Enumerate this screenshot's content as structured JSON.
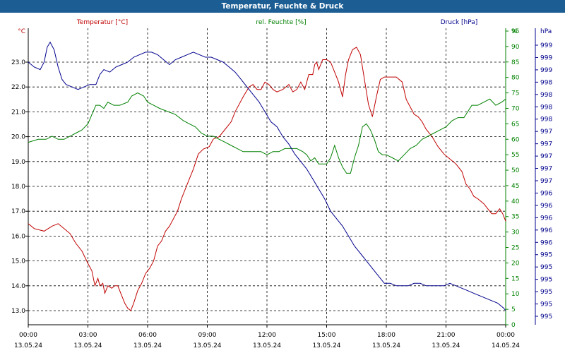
{
  "window": {
    "title": "Temperatur, Feuchte & Druck"
  },
  "colors": {
    "temperature": "#c00000",
    "humidity": "#008000",
    "pressure": "#00008c",
    "grid": "#000000",
    "titlebar": "#1c5e94"
  },
  "chart_data": {
    "type": "line",
    "title": "Temperatur, Feuchte & Druck",
    "grid": true,
    "x": {
      "range_hours": [
        0,
        24
      ],
      "tick_times": [
        "00:00",
        "03:00",
        "06:00",
        "09:00",
        "12:00",
        "15:00",
        "18:00",
        "21:00",
        "00:00"
      ],
      "tick_dates": [
        "13.05.24",
        "13.05.24",
        "13.05.24",
        "13.05.24",
        "13.05.24",
        "13.05.24",
        "13.05.24",
        "13.05.24",
        "14.05.24"
      ]
    },
    "axes": {
      "temperature": {
        "label": "Temperatur [°C]",
        "unit": "°C",
        "range": [
          12.5,
          23.9
        ],
        "ticks": [
          "13.0",
          "14.0",
          "15.0",
          "16.0",
          "17.0",
          "18.0",
          "19.0",
          "20.0",
          "21.0",
          "22.0",
          "23.0"
        ]
      },
      "humidity": {
        "label": "rel. Feuchte [%]",
        "unit": "%",
        "range": [
          0,
          98
        ],
        "ticks": [
          "0",
          "5",
          "10",
          "15",
          "20",
          "25",
          "30",
          "35",
          "40",
          "45",
          "50",
          "55",
          "60",
          "65",
          "70",
          "75",
          "80",
          "85",
          "90",
          "95"
        ]
      },
      "pressure": {
        "label": "Druck [hPa]",
        "unit": "hPa",
        "ticks": [
          "995",
          "995",
          "995",
          "995",
          "995",
          "995",
          "996",
          "996",
          "996",
          "996",
          "996",
          "997",
          "997",
          "997",
          "997",
          "997",
          "998",
          "998",
          "998",
          "998",
          "999",
          "999",
          "999"
        ]
      }
    },
    "series": [
      {
        "name": "Temperatur [°C]",
        "axis": "temperature",
        "points": [
          [
            0,
            16.5
          ],
          [
            0.3,
            16.3
          ],
          [
            0.8,
            16.2
          ],
          [
            1.2,
            16.4
          ],
          [
            1.5,
            16.5
          ],
          [
            1.8,
            16.3
          ],
          [
            2.1,
            16.1
          ],
          [
            2.4,
            15.7
          ],
          [
            2.7,
            15.4
          ],
          [
            3.0,
            14.9
          ],
          [
            3.2,
            14.6
          ],
          [
            3.35,
            14.0
          ],
          [
            3.5,
            14.3
          ],
          [
            3.6,
            14.0
          ],
          [
            3.75,
            14.1
          ],
          [
            3.85,
            13.7
          ],
          [
            4.0,
            14.0
          ],
          [
            4.2,
            13.9
          ],
          [
            4.35,
            14.0
          ],
          [
            4.5,
            14.0
          ],
          [
            4.7,
            13.6
          ],
          [
            4.85,
            13.3
          ],
          [
            5.0,
            13.1
          ],
          [
            5.15,
            13.0
          ],
          [
            5.3,
            13.3
          ],
          [
            5.5,
            13.8
          ],
          [
            5.7,
            14.1
          ],
          [
            5.9,
            14.5
          ],
          [
            6.1,
            14.7
          ],
          [
            6.3,
            15.0
          ],
          [
            6.5,
            15.6
          ],
          [
            6.7,
            15.8
          ],
          [
            6.9,
            16.2
          ],
          [
            7.1,
            16.4
          ],
          [
            7.3,
            16.7
          ],
          [
            7.5,
            17.0
          ],
          [
            7.7,
            17.5
          ],
          [
            7.9,
            17.9
          ],
          [
            8.1,
            18.3
          ],
          [
            8.3,
            18.7
          ],
          [
            8.55,
            19.3
          ],
          [
            8.8,
            19.5
          ],
          [
            9.1,
            19.6
          ],
          [
            9.3,
            19.9
          ],
          [
            9.6,
            20.0
          ],
          [
            9.9,
            20.3
          ],
          [
            10.2,
            20.6
          ],
          [
            10.4,
            21.0
          ],
          [
            10.6,
            21.3
          ],
          [
            10.8,
            21.6
          ],
          [
            11.1,
            22.0
          ],
          [
            11.3,
            22.1
          ],
          [
            11.5,
            21.9
          ],
          [
            11.7,
            21.9
          ],
          [
            11.9,
            22.2
          ],
          [
            12.1,
            22.1
          ],
          [
            12.3,
            21.9
          ],
          [
            12.5,
            21.8
          ],
          [
            12.8,
            21.9
          ],
          [
            13.1,
            22.1
          ],
          [
            13.3,
            21.8
          ],
          [
            13.5,
            21.9
          ],
          [
            13.7,
            22.2
          ],
          [
            13.9,
            21.9
          ],
          [
            14.1,
            22.5
          ],
          [
            14.3,
            22.5
          ],
          [
            14.4,
            22.9
          ],
          [
            14.5,
            23.0
          ],
          [
            14.6,
            22.7
          ],
          [
            14.8,
            23.1
          ],
          [
            15.0,
            23.1
          ],
          [
            15.2,
            23.0
          ],
          [
            15.4,
            22.6
          ],
          [
            15.6,
            22.2
          ],
          [
            15.8,
            21.6
          ],
          [
            15.95,
            22.5
          ],
          [
            16.1,
            23.1
          ],
          [
            16.3,
            23.5
          ],
          [
            16.5,
            23.6
          ],
          [
            16.7,
            23.3
          ],
          [
            16.9,
            22.3
          ],
          [
            17.1,
            21.3
          ],
          [
            17.3,
            20.8
          ],
          [
            17.5,
            21.6
          ],
          [
            17.7,
            22.3
          ],
          [
            17.9,
            22.4
          ],
          [
            18.2,
            22.4
          ],
          [
            18.5,
            22.4
          ],
          [
            18.8,
            22.2
          ],
          [
            19.0,
            21.5
          ],
          [
            19.2,
            21.2
          ],
          [
            19.4,
            20.9
          ],
          [
            19.6,
            20.8
          ],
          [
            19.8,
            20.6
          ],
          [
            20.0,
            20.3
          ],
          [
            20.3,
            20.0
          ],
          [
            20.6,
            19.6
          ],
          [
            20.9,
            19.3
          ],
          [
            21.2,
            19.1
          ],
          [
            21.5,
            18.9
          ],
          [
            21.8,
            18.6
          ],
          [
            22.0,
            18.1
          ],
          [
            22.2,
            17.9
          ],
          [
            22.4,
            17.6
          ],
          [
            22.6,
            17.5
          ],
          [
            22.9,
            17.3
          ],
          [
            23.1,
            17.1
          ],
          [
            23.3,
            16.9
          ],
          [
            23.5,
            16.9
          ],
          [
            23.7,
            17.1
          ],
          [
            23.85,
            16.9
          ],
          [
            24.0,
            16.6
          ]
        ]
      },
      {
        "name": "rel. Feuchte [%]",
        "axis": "humidity",
        "points": [
          [
            0,
            59
          ],
          [
            0.5,
            60
          ],
          [
            0.9,
            60
          ],
          [
            1.2,
            61
          ],
          [
            1.5,
            60
          ],
          [
            1.8,
            60
          ],
          [
            2.1,
            61
          ],
          [
            2.4,
            62
          ],
          [
            2.7,
            63
          ],
          [
            3.0,
            65
          ],
          [
            3.2,
            68
          ],
          [
            3.4,
            71
          ],
          [
            3.6,
            71
          ],
          [
            3.8,
            70
          ],
          [
            4.0,
            72
          ],
          [
            4.3,
            71
          ],
          [
            4.6,
            71
          ],
          [
            5.0,
            72
          ],
          [
            5.2,
            74
          ],
          [
            5.5,
            75
          ],
          [
            5.8,
            74
          ],
          [
            6.0,
            72
          ],
          [
            6.3,
            71
          ],
          [
            6.6,
            70
          ],
          [
            7.0,
            69
          ],
          [
            7.4,
            68
          ],
          [
            7.8,
            66
          ],
          [
            8.1,
            65
          ],
          [
            8.4,
            64
          ],
          [
            8.7,
            62
          ],
          [
            9.0,
            61
          ],
          [
            9.3,
            61
          ],
          [
            9.6,
            60
          ],
          [
            9.9,
            59
          ],
          [
            10.2,
            58
          ],
          [
            10.5,
            57
          ],
          [
            10.8,
            56
          ],
          [
            11.1,
            56
          ],
          [
            11.4,
            56
          ],
          [
            11.7,
            56
          ],
          [
            12.0,
            55
          ],
          [
            12.3,
            56
          ],
          [
            12.6,
            56
          ],
          [
            12.9,
            57
          ],
          [
            13.2,
            57
          ],
          [
            13.5,
            57
          ],
          [
            13.8,
            56
          ],
          [
            14.0,
            55
          ],
          [
            14.2,
            53
          ],
          [
            14.4,
            54
          ],
          [
            14.6,
            52
          ],
          [
            14.8,
            52
          ],
          [
            15.0,
            52
          ],
          [
            15.2,
            54
          ],
          [
            15.4,
            58
          ],
          [
            15.6,
            54
          ],
          [
            15.8,
            51
          ],
          [
            16.0,
            49
          ],
          [
            16.2,
            49
          ],
          [
            16.4,
            54
          ],
          [
            16.6,
            58
          ],
          [
            16.8,
            64
          ],
          [
            17.0,
            65
          ],
          [
            17.2,
            63
          ],
          [
            17.4,
            60
          ],
          [
            17.6,
            56
          ],
          [
            17.8,
            55
          ],
          [
            18.0,
            55
          ],
          [
            18.3,
            54
          ],
          [
            18.6,
            53
          ],
          [
            18.9,
            55
          ],
          [
            19.2,
            57
          ],
          [
            19.5,
            58
          ],
          [
            19.8,
            60
          ],
          [
            20.1,
            61
          ],
          [
            20.4,
            62
          ],
          [
            20.7,
            63
          ],
          [
            21.0,
            64
          ],
          [
            21.3,
            66
          ],
          [
            21.6,
            67
          ],
          [
            21.9,
            67
          ],
          [
            22.1,
            69
          ],
          [
            22.3,
            71
          ],
          [
            22.6,
            71
          ],
          [
            22.9,
            72
          ],
          [
            23.2,
            73
          ],
          [
            23.5,
            71
          ],
          [
            23.8,
            72
          ],
          [
            24.0,
            73
          ]
        ]
      },
      {
        "name": "Druck [hPa]",
        "axis": "pressure",
        "points": [
          [
            0,
            23.0
          ],
          [
            0.3,
            22.8
          ],
          [
            0.6,
            22.7
          ],
          [
            0.8,
            23.0
          ],
          [
            0.95,
            23.6
          ],
          [
            1.1,
            23.8
          ],
          [
            1.3,
            23.5
          ],
          [
            1.5,
            22.8
          ],
          [
            1.7,
            22.3
          ],
          [
            1.9,
            22.1
          ],
          [
            2.2,
            22.0
          ],
          [
            2.5,
            21.9
          ],
          [
            2.8,
            22.0
          ],
          [
            3.1,
            22.1
          ],
          [
            3.4,
            22.1
          ],
          [
            3.6,
            22.5
          ],
          [
            3.8,
            22.7
          ],
          [
            4.1,
            22.6
          ],
          [
            4.4,
            22.8
          ],
          [
            4.7,
            22.9
          ],
          [
            5.0,
            23.0
          ],
          [
            5.3,
            23.2
          ],
          [
            5.6,
            23.3
          ],
          [
            5.9,
            23.4
          ],
          [
            6.2,
            23.4
          ],
          [
            6.5,
            23.3
          ],
          [
            6.8,
            23.1
          ],
          [
            7.1,
            22.9
          ],
          [
            7.4,
            23.1
          ],
          [
            7.7,
            23.2
          ],
          [
            8.0,
            23.3
          ],
          [
            8.3,
            23.4
          ],
          [
            8.6,
            23.3
          ],
          [
            8.9,
            23.2
          ],
          [
            9.2,
            23.2
          ],
          [
            9.5,
            23.1
          ],
          [
            9.8,
            23.0
          ],
          [
            10.1,
            22.8
          ],
          [
            10.4,
            22.6
          ],
          [
            10.7,
            22.3
          ],
          [
            11.0,
            22.0
          ],
          [
            11.3,
            21.7
          ],
          [
            11.6,
            21.4
          ],
          [
            11.9,
            21.0
          ],
          [
            12.2,
            20.6
          ],
          [
            12.5,
            20.4
          ],
          [
            12.8,
            20.0
          ],
          [
            13.1,
            19.7
          ],
          [
            13.4,
            19.3
          ],
          [
            13.7,
            19.0
          ],
          [
            14.0,
            18.7
          ],
          [
            14.3,
            18.3
          ],
          [
            14.6,
            17.9
          ],
          [
            14.9,
            17.5
          ],
          [
            15.2,
            17.0
          ],
          [
            15.5,
            16.7
          ],
          [
            15.8,
            16.4
          ],
          [
            16.1,
            16.0
          ],
          [
            16.4,
            15.6
          ],
          [
            16.7,
            15.3
          ],
          [
            17.0,
            15.0
          ],
          [
            17.3,
            14.7
          ],
          [
            17.6,
            14.4
          ],
          [
            17.9,
            14.1
          ],
          [
            18.2,
            14.1
          ],
          [
            18.5,
            14.0
          ],
          [
            18.8,
            14.0
          ],
          [
            19.1,
            14.0
          ],
          [
            19.4,
            14.1
          ],
          [
            19.7,
            14.1
          ],
          [
            20.0,
            14.0
          ],
          [
            20.3,
            14.0
          ],
          [
            20.6,
            14.0
          ],
          [
            20.9,
            14.0
          ],
          [
            21.2,
            14.1
          ],
          [
            21.5,
            14.0
          ],
          [
            21.8,
            13.9
          ],
          [
            22.1,
            13.8
          ],
          [
            22.4,
            13.7
          ],
          [
            22.7,
            13.6
          ],
          [
            23.0,
            13.5
          ],
          [
            23.3,
            13.4
          ],
          [
            23.6,
            13.3
          ],
          [
            23.9,
            13.1
          ],
          [
            24.0,
            13.0
          ]
        ]
      }
    ]
  }
}
